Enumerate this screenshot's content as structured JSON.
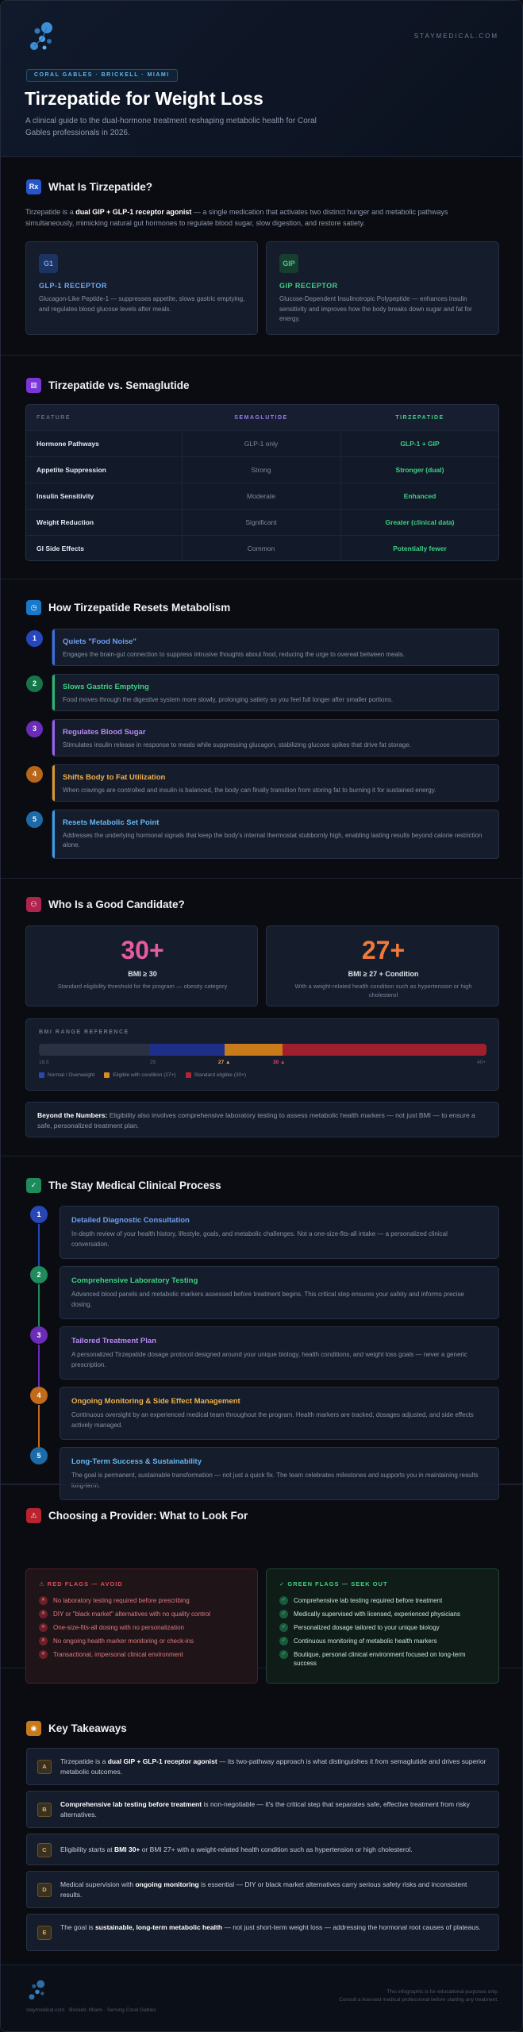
{
  "header": {
    "site": "STAYMEDICAL.COM",
    "location": "CORAL GABLES · BRICKELL · MIAMI",
    "title": "Tirzepatide for Weight Loss",
    "subtitle": "A clinical guide to the dual-hormone treatment reshaping metabolic health for Coral Gables professionals in 2026."
  },
  "what": {
    "title": "What Is Tirzepatide?",
    "intro_pre": "Tirzepatide is a ",
    "intro_bold": "dual GIP + GLP-1 receptor agonist",
    "intro_post": " — a single medication that activates two distinct hunger and metabolic pathways simultaneously, mimicking natural gut hormones to regulate blood sugar, slow digestion, and restore satiety.",
    "cards": [
      {
        "badge": "G1",
        "title": "GLP-1 RECEPTOR",
        "desc": "Glucagon-Like Peptide-1 — suppresses appetite, slows gastric emptying, and regulates blood glucose levels after meals."
      },
      {
        "badge": "GIP",
        "title": "GIP RECEPTOR",
        "desc": "Glucose-Dependent Insulinotropic Polypeptide — enhances insulin sensitivity and improves how the body breaks down sugar and fat for energy."
      }
    ]
  },
  "compare": {
    "title": "Tirzepatide vs. Semaglutide",
    "headers": [
      "FEATURE",
      "SEMAGLUTIDE",
      "TIRZEPATIDE"
    ],
    "rows": [
      [
        "Hormone Pathways",
        "GLP-1 only",
        "GLP-1 + GIP"
      ],
      [
        "Appetite Suppression",
        "Strong",
        "Stronger (dual)"
      ],
      [
        "Insulin Sensitivity",
        "Moderate",
        "Enhanced"
      ],
      [
        "Weight Reduction",
        "Significant",
        "Greater (clinical data)"
      ],
      [
        "GI Side Effects",
        "Common",
        "Potentially fewer"
      ]
    ]
  },
  "metabolism": {
    "title": "How Tirzepatide Resets Metabolism",
    "steps": [
      {
        "n": "1",
        "title": "Quiets \"Food Noise\"",
        "desc": "Engages the brain-gut connection to suppress intrusive thoughts about food, reducing the urge to overeat between meals."
      },
      {
        "n": "2",
        "title": "Slows Gastric Emptying",
        "desc": "Food moves through the digestive system more slowly, prolonging satiety so you feel full longer after smaller portions."
      },
      {
        "n": "3",
        "title": "Regulates Blood Sugar",
        "desc": "Stimulates insulin release in response to meals while suppressing glucagon, stabilizing glucose spikes that drive fat storage."
      },
      {
        "n": "4",
        "title": "Shifts Body to Fat Utilization",
        "desc": "When cravings are controlled and insulin is balanced, the body can finally transition from storing fat to burning it for sustained energy."
      },
      {
        "n": "5",
        "title": "Resets Metabolic Set Point",
        "desc": "Addresses the underlying hormonal signals that keep the body's internal thermostat stubbornly high, enabling lasting results beyond calorie restriction alone."
      }
    ]
  },
  "candidate": {
    "title": "Who Is a Good Candidate?",
    "stats": [
      {
        "value": "30+",
        "label": "BMI ≥ 30",
        "desc": "Standard eligibility threshold for the program — obesity category"
      },
      {
        "value": "27+",
        "label": "BMI ≥ 27 + Condition",
        "desc": "With a weight-related health condition such as hypertension or high cholesterol"
      }
    ],
    "bmi": {
      "title": "BMI RANGE REFERENCE",
      "min_label": "18.5",
      "mid_label": "25",
      "mark1": "27 ▲",
      "mark2": "30 ▲",
      "max_label": "40+",
      "legend": [
        "Normal / Overweight",
        "Eligible with condition (27+)",
        "Standard eligible (30+)"
      ]
    },
    "note_bold": "Beyond the Numbers:",
    "note": " Eligibility also involves comprehensive laboratory testing to assess metabolic health markers — not just BMI — to ensure a safe, personalized treatment plan."
  },
  "process": {
    "title": "The Stay Medical Clinical Process",
    "steps": [
      {
        "n": "1",
        "title": "Detailed Diagnostic Consultation",
        "desc": "In-depth review of your health history, lifestyle, goals, and metabolic challenges. Not a one-size-fits-all intake — a personalized clinical conversation."
      },
      {
        "n": "2",
        "title": "Comprehensive Laboratory Testing",
        "desc": "Advanced blood panels and metabolic markers assessed before treatment begins. This critical step ensures your safety and informs precise dosing."
      },
      {
        "n": "3",
        "title": "Tailored Treatment Plan",
        "desc": "A personalized Tirzepatide dosage protocol designed around your unique biology, health conditions, and weight loss goals — never a generic prescription."
      },
      {
        "n": "4",
        "title": "Ongoing Monitoring & Side Effect Management",
        "desc": "Continuous oversight by an experienced medical team throughout the program. Health markers are tracked, dosages adjusted, and side effects actively managed."
      },
      {
        "n": "5",
        "title": "Long-Term Success & Sustainability",
        "desc": "The goal is permanent, sustainable transformation — not just a quick fix. The team celebrates milestones and supports you in maintaining results long-term."
      }
    ]
  },
  "provider": {
    "title": "Choosing a Provider: What to Look For",
    "red_title": "⚠ RED FLAGS — AVOID",
    "red": [
      "No laboratory testing required before prescribing",
      "DIY or \"black market\" alternatives with no quality control",
      "One-size-fits-all dosing with no personalization",
      "No ongoing health marker monitoring or check-ins",
      "Transactional, impersonal clinical environment"
    ],
    "green_title": "✓ GREEN FLAGS — SEEK OUT",
    "green": [
      "Comprehensive lab testing required before treatment",
      "Medically supervised with licensed, experienced physicians",
      "Personalized dosage tailored to your unique biology",
      "Continuous monitoring of metabolic health markers",
      "Boutique, personal clinical environment focused on long-term success"
    ]
  },
  "takeaways": {
    "title": "Key Takeaways",
    "items": [
      {
        "l": "A",
        "pre": "Tirzepatide is a ",
        "bold": "dual GIP + GLP-1 receptor agonist",
        "post": " — its two-pathway approach is what distinguishes it from semaglutide and drives superior metabolic outcomes."
      },
      {
        "l": "B",
        "pre": "",
        "bold": "Comprehensive lab testing before treatment",
        "post": " is non-negotiable — it's the critical step that separates safe, effective treatment from risky alternatives."
      },
      {
        "l": "C",
        "pre": "Eligibility starts at ",
        "bold": "BMI 30+",
        "post": " or BMI 27+ with a weight-related health condition such as hypertension or high cholesterol."
      },
      {
        "l": "D",
        "pre": "Medical supervision with ",
        "bold": "ongoing monitoring",
        "post": " is essential — DIY or black market alternatives carry serious safety risks and inconsistent results."
      },
      {
        "l": "E",
        "pre": "The goal is ",
        "bold": "sustainable, long-term metabolic health",
        "post": " — not just short-term weight loss — addressing the hormonal root causes of plateaus."
      }
    ]
  },
  "footer": {
    "left": "staymedical.com · Brickell, Miami · Serving Coral Gables",
    "right1": "This infographic is for educational purposes only.",
    "right2": "Consult a licensed medical professional before starting any treatment."
  }
}
